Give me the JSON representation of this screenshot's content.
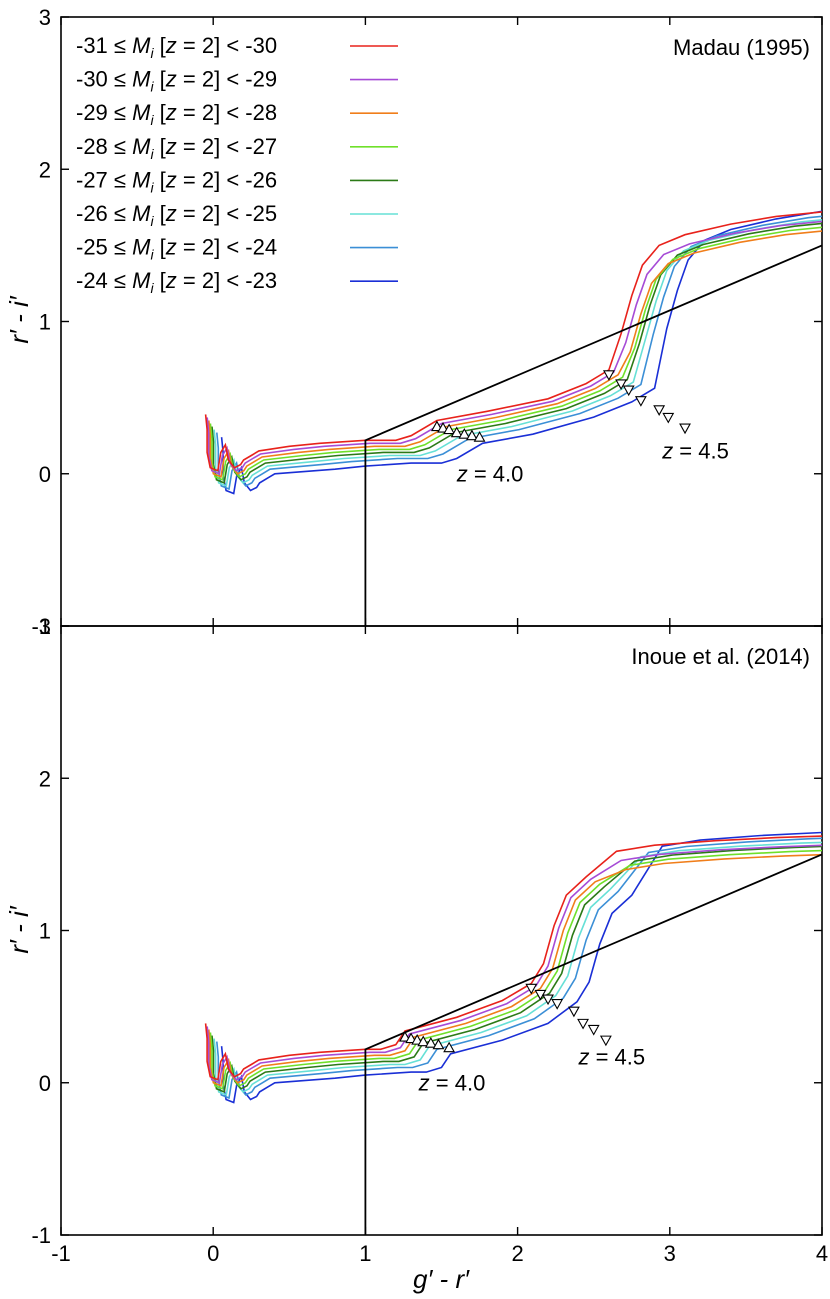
{
  "chart_data": [
    {
      "type": "line",
      "title": "Madau (1995)",
      "xlabel": "g′ - r′",
      "ylabel": "r′ - i′",
      "xlim": [
        -1,
        4
      ],
      "ylim": [
        -1,
        3
      ],
      "xticks": [
        "-1",
        "0",
        "1",
        "2",
        "3",
        "4"
      ],
      "yticks": [
        "-1",
        "0",
        "1",
        "2",
        "3"
      ],
      "grid": false,
      "legend": "top-left",
      "legend_entries": [
        {
          "prefix": "-31 ≤ ",
          "M": "M",
          "sub": "i",
          "suffix": " [z = 2] < -30",
          "color": "#e8221b"
        },
        {
          "prefix": "-30 ≤ ",
          "M": "M",
          "sub": "i",
          "suffix": " [z = 2] < -29",
          "color": "#a64bd6"
        },
        {
          "prefix": "-29 ≤ ",
          "M": "M",
          "sub": "i",
          "suffix": " [z = 2] < -28",
          "color": "#f07e1a"
        },
        {
          "prefix": "-28 ≤ ",
          "M": "M",
          "sub": "i",
          "suffix": " [z = 2] < -27",
          "color": "#6fe02a"
        },
        {
          "prefix": "-27 ≤ ",
          "M": "M",
          "sub": "i",
          "suffix": " [z = 2] < -26",
          "color": "#2b7a17"
        },
        {
          "prefix": "-26 ≤ ",
          "M": "M",
          "sub": "i",
          "suffix": " [z = 2] < -25",
          "color": "#66e0d6"
        },
        {
          "prefix": "-25 ≤ ",
          "M": "M",
          "sub": "i",
          "suffix": " [z = 2] < -24",
          "color": "#3b8fd6"
        },
        {
          "prefix": "-24 ≤ ",
          "M": "M",
          "sub": "i",
          "suffix": " [z = 2] < -23",
          "color": "#1a2fd6"
        }
      ],
      "selection_box": [
        [
          1,
          -1
        ],
        [
          1,
          0.22
        ],
        [
          4,
          1.5
        ]
      ],
      "annotations": [
        {
          "text": "z = 4.0",
          "x": 1.6,
          "y": -0.05
        },
        {
          "text": "z = 4.5",
          "x": 2.95,
          "y": 0.1
        }
      ],
      "z4_markers": [
        [
          1.47,
          0.31
        ],
        [
          1.51,
          0.3
        ],
        [
          1.55,
          0.29
        ],
        [
          1.6,
          0.27
        ],
        [
          1.65,
          0.26
        ],
        [
          1.7,
          0.25
        ],
        [
          1.75,
          0.24
        ]
      ],
      "z45_markers": [
        [
          2.6,
          0.65
        ],
        [
          2.68,
          0.59
        ],
        [
          2.73,
          0.55
        ],
        [
          2.81,
          0.48
        ],
        [
          2.93,
          0.42
        ],
        [
          2.99,
          0.37
        ],
        [
          3.1,
          0.3
        ]
      ],
      "series_meta": {
        "dx": [
          0,
          0.03,
          0.06,
          0.09,
          0.12,
          0.16,
          0.21,
          0.3
        ],
        "dy": [
          0.04,
          0.02,
          0,
          -0.02,
          -0.04,
          -0.06,
          -0.08,
          -0.11
        ]
      }
    },
    {
      "type": "line",
      "title": "Inoue et al. (2014)",
      "xlabel": "g′ - r′",
      "ylabel": "r′ - i′",
      "xlim": [
        -1,
        4
      ],
      "ylim": [
        -1,
        3
      ],
      "xticks": [
        "-1",
        "0",
        "1",
        "2",
        "3",
        "4"
      ],
      "yticks": [
        "-1",
        "0",
        "1",
        "2",
        "3"
      ],
      "grid": false,
      "selection_box": [
        [
          1,
          -1
        ],
        [
          1,
          0.22
        ],
        [
          4,
          1.5
        ]
      ],
      "annotations": [
        {
          "text": "z = 4.0",
          "x": 1.35,
          "y": -0.05
        },
        {
          "text": "z = 4.5",
          "x": 2.4,
          "y": 0.12
        }
      ],
      "z4_markers": [
        [
          1.26,
          0.3
        ],
        [
          1.3,
          0.29
        ],
        [
          1.34,
          0.28
        ],
        [
          1.38,
          0.27
        ],
        [
          1.43,
          0.26
        ],
        [
          1.48,
          0.25
        ],
        [
          1.55,
          0.23
        ]
      ],
      "z45_markers": [
        [
          2.09,
          0.62
        ],
        [
          2.15,
          0.58
        ],
        [
          2.2,
          0.55
        ],
        [
          2.26,
          0.52
        ],
        [
          2.37,
          0.47
        ],
        [
          2.43,
          0.39
        ],
        [
          2.5,
          0.35
        ],
        [
          2.58,
          0.28
        ]
      ],
      "series_meta": {
        "dx": [
          0,
          0.03,
          0.06,
          0.09,
          0.12,
          0.16,
          0.21,
          0.3
        ],
        "dy": [
          0.04,
          0.02,
          0,
          -0.02,
          -0.04,
          -0.06,
          -0.08,
          -0.11
        ]
      }
    }
  ]
}
